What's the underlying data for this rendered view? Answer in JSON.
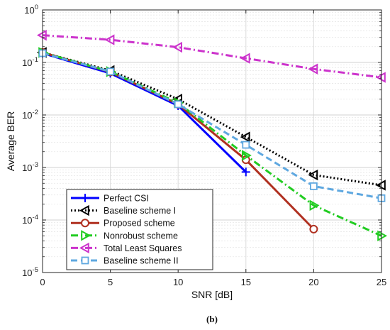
{
  "caption": "(b)",
  "chart_data": {
    "type": "line",
    "xlabel": "SNR [dB]",
    "ylabel": "Average BER",
    "xlim": [
      0,
      25
    ],
    "ylim": [
      1e-05,
      1
    ],
    "yscale": "log",
    "grid": true,
    "legend_position": "bottom-left",
    "x_ticks": [
      "0",
      "5",
      "10",
      "15",
      "20",
      "25"
    ],
    "y_ticks": [
      {
        "base": "10",
        "exp": "0"
      },
      {
        "base": "10",
        "exp": "-1"
      },
      {
        "base": "10",
        "exp": "-2"
      },
      {
        "base": "10",
        "exp": "-3"
      },
      {
        "base": "10",
        "exp": "-4"
      },
      {
        "base": "10",
        "exp": "-5"
      }
    ],
    "series": [
      {
        "name": "Perfect CSI",
        "color": "#0000ff",
        "dash": "solid",
        "marker": "plus",
        "x": [
          0,
          5,
          10,
          15
        ],
        "y": [
          0.15,
          0.062,
          0.015,
          0.00082
        ]
      },
      {
        "name": "Baseline scheme I",
        "color": "#000000",
        "dash": "dotted",
        "marker": "triangle-left",
        "x": [
          0,
          5,
          10,
          15,
          20,
          25
        ],
        "y": [
          0.155,
          0.07,
          0.02,
          0.0038,
          0.00072,
          0.00046
        ]
      },
      {
        "name": "Proposed scheme",
        "color": "#b03020",
        "dash": "solid",
        "marker": "circle",
        "x": [
          0,
          5,
          10,
          15,
          20
        ],
        "y": [
          0.155,
          0.066,
          0.016,
          0.0014,
          6.7e-05
        ]
      },
      {
        "name": "Nonrobust scheme",
        "color": "#22cc22",
        "dash": "dashdot",
        "marker": "triangle-right",
        "x": [
          0,
          5,
          10,
          15,
          20,
          25
        ],
        "y": [
          0.155,
          0.067,
          0.017,
          0.0017,
          0.00019,
          5e-05
        ]
      },
      {
        "name": "Total Least Squares",
        "color": "#cc33cc",
        "dash": "dashdot",
        "marker": "triangle-left",
        "x": [
          0,
          5,
          10,
          15,
          20,
          25
        ],
        "y": [
          0.33,
          0.27,
          0.195,
          0.12,
          0.075,
          0.052
        ]
      },
      {
        "name": "Baseline scheme II",
        "color": "#5fa8e0",
        "dash": "dashed",
        "marker": "square",
        "x": [
          0,
          5,
          10,
          15,
          20,
          25
        ],
        "y": [
          0.15,
          0.067,
          0.016,
          0.0027,
          0.00044,
          0.00026
        ]
      }
    ]
  }
}
